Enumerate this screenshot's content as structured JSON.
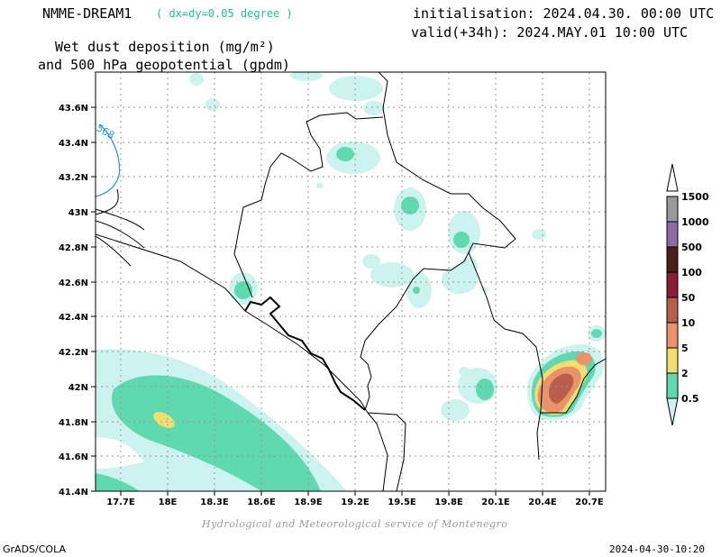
{
  "header": {
    "model_title": "NMME-DREAM1",
    "grid_info": "( dx=dy=0.05 degree )",
    "variable_line1": "Wet dust deposition (mg/m²)",
    "variable_line2": "and 500 hPa geopotential (gpdm)",
    "init_line": "initialisation: 2024.04.30. 00:00 UTC",
    "valid_line": "valid(+34h): 2024.MAY.01 10:00 UTC"
  },
  "map": {
    "lat_ticks": [
      "43.6N",
      "43.4N",
      "43.2N",
      "43N",
      "42.8N",
      "42.6N",
      "42.4N",
      "42.2N",
      "42N",
      "41.8N",
      "41.6N",
      "41.4N"
    ],
    "lon_ticks": [
      "17.7E",
      "18E",
      "18.3E",
      "18.6E",
      "18.9E",
      "19.2E",
      "19.5E",
      "19.8E",
      "20.1E",
      "20.4E",
      "20.7E"
    ],
    "contour_label": "568",
    "contour_color": "#2299dd",
    "border_color": "#000000",
    "grid_color": "#999999"
  },
  "colorbar": {
    "levels": [
      "0.5",
      "2",
      "5",
      "10",
      "50",
      "100",
      "500",
      "1000",
      "1500"
    ],
    "colors": [
      "#cdf3ee",
      "#5fd9b0",
      "#f2de6e",
      "#e9936a",
      "#b85e4a",
      "#8a1e34",
      "#4a2016",
      "#8e6aa6",
      "#9a9a9a"
    ]
  },
  "footer": {
    "credit": "Hydrological and Meteorological service of Montenegro",
    "left": "GrADS/COLA",
    "right": "2024-04-30-10:20"
  }
}
